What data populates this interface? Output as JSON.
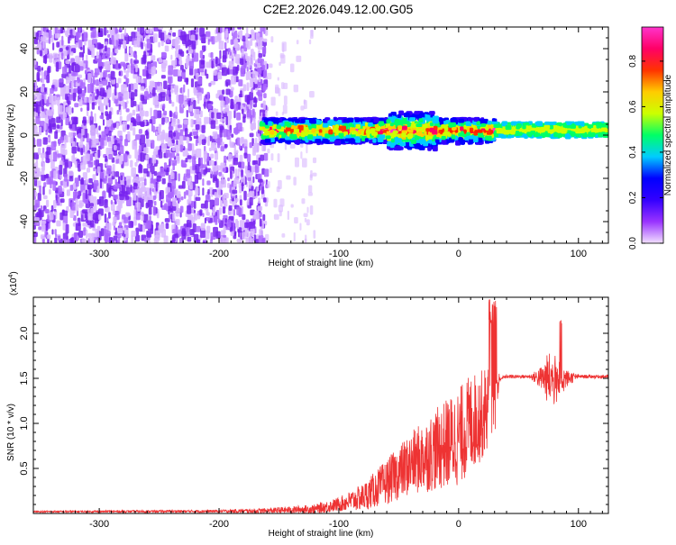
{
  "title": "C2E2.2026.049.12.00.G05",
  "chart_data": [
    {
      "type": "heatmap",
      "title": "C2E2.2026.049.12.00.G05",
      "xlabel": "Height of straight line (km)",
      "ylabel": "Frequency (Hz)",
      "xlim": [
        -355,
        125
      ],
      "ylim": [
        -50,
        50
      ],
      "xticks": [
        -300,
        -200,
        -100,
        0,
        100
      ],
      "yticks": [
        -40,
        -20,
        0,
        20,
        40
      ],
      "colorbar": {
        "label": "Normalized spectral amplitude",
        "range": [
          0.0,
          0.95
        ],
        "ticks": [
          0.0,
          0.2,
          0.4,
          0.6,
          0.8
        ],
        "colors": [
          "#f2e0ff",
          "#9933ff",
          "#3300ff",
          "#0000ff",
          "#00ccff",
          "#00ff66",
          "#ccff00",
          "#ffcc00",
          "#ff3300",
          "#ff0066",
          "#ff33cc"
        ]
      },
      "regions": [
        {
          "name": "noise",
          "x_range": [
            -355,
            -160
          ],
          "freq_range": [
            -50,
            50
          ],
          "amplitude": [
            0.02,
            0.15
          ]
        },
        {
          "name": "sparse noise",
          "x_range": [
            -160,
            -120
          ],
          "freq_range": [
            -50,
            50
          ],
          "amplitude": [
            0.0,
            0.05
          ]
        },
        {
          "name": "signal band",
          "x_range": [
            -165,
            30
          ],
          "center_freq": 2,
          "width_freq": 12,
          "amplitude": [
            0.2,
            0.95
          ]
        },
        {
          "name": "stable signal",
          "x_range": [
            30,
            125
          ],
          "center_freq": 2.5,
          "width_freq": 6,
          "amplitude": [
            0.4,
            0.6
          ]
        }
      ]
    },
    {
      "type": "line",
      "xlabel": "Height of straight line (km)",
      "ylabel": "SNR (10 * v/v)",
      "yunit": "(x10",
      "yunit_exp": "4",
      "yunit_close": ")",
      "xlim": [
        -355,
        125
      ],
      "ylim": [
        0,
        2.4
      ],
      "xticks": [
        -300,
        -200,
        -100,
        0,
        100
      ],
      "yticks": [
        0.5,
        1.0,
        1.5,
        2.0
      ],
      "ytick_labels": [
        "0.5",
        "1.0",
        "1.5",
        "2.0"
      ],
      "series": [
        {
          "name": "SNR",
          "color": "#ee3333",
          "profile_x": [
            -355,
            -200,
            -160,
            -120,
            -100,
            -80,
            -60,
            -40,
            -20,
            0,
            10,
            20,
            30,
            35,
            40,
            60,
            70,
            75,
            80,
            90,
            100,
            125
          ],
          "profile_mean": [
            0.02,
            0.025,
            0.03,
            0.05,
            0.1,
            0.18,
            0.35,
            0.55,
            0.7,
            0.85,
            1.0,
            1.1,
            1.3,
            1.5,
            1.52,
            1.52,
            1.5,
            1.5,
            1.48,
            1.5,
            1.52,
            1.52
          ],
          "profile_amp": [
            0.01,
            0.015,
            0.03,
            0.05,
            0.08,
            0.15,
            0.25,
            0.35,
            0.45,
            0.55,
            0.55,
            0.5,
            0.45,
            0.02,
            0.02,
            0.02,
            0.15,
            0.3,
            0.3,
            0.1,
            0.02,
            0.02
          ],
          "peak_max": 2.38
        }
      ]
    }
  ]
}
